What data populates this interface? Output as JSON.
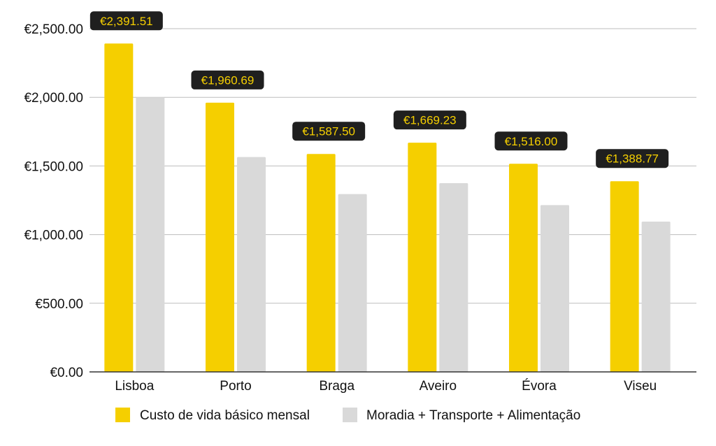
{
  "chart_data": {
    "type": "bar",
    "categories": [
      "Lisboa",
      "Porto",
      "Braga",
      "Aveiro",
      "Évora",
      "Viseu"
    ],
    "series": [
      {
        "name": "Custo de vida básico mensal",
        "color": "#F5CF00",
        "values": [
          2391.51,
          1960.69,
          1587.5,
          1669.23,
          1516.0,
          1388.77
        ],
        "data_labels": [
          "€2,391.51",
          "€1,960.69",
          "€1,587.50",
          "€1,669.23",
          "€1,516.00",
          "€1,388.77"
        ]
      },
      {
        "name": "Moradia + Transporte + Alimentação",
        "color": "#D9D9D9",
        "values": [
          2000,
          1565,
          1295,
          1375,
          1215,
          1095
        ]
      }
    ],
    "y_ticks": [
      "€0.00",
      "€500.00",
      "€1,000.00",
      "€1,500.00",
      "€2,000.00",
      "€2,500.00"
    ],
    "ylim": [
      0,
      2500
    ],
    "grid": true,
    "legend_position": "bottom",
    "data_label_style": {
      "background": "#1F1F1F",
      "text_color": "#F5CF00"
    }
  }
}
